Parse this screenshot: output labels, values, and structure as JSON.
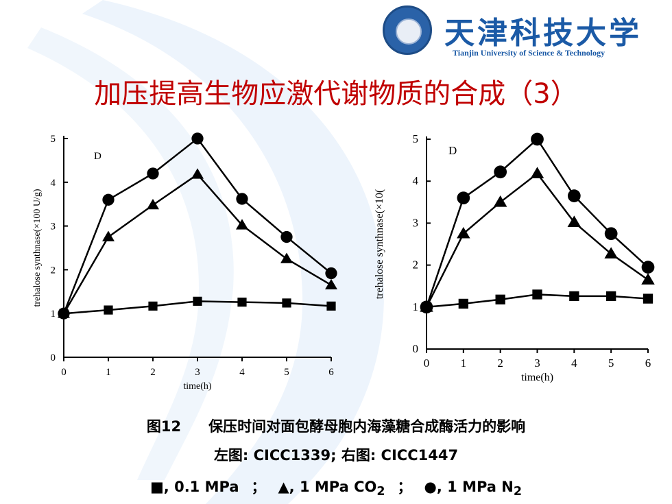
{
  "header": {
    "logo_cn": "天津科技大学",
    "logo_en": "Tianjin University of Science & Technology"
  },
  "title": "加压提高生物应激代谢物质的合成（3）",
  "colors": {
    "title": "#c00000",
    "logo": "#1b5aa6",
    "marks": "#000000"
  },
  "chart_data": [
    {
      "type": "line",
      "panel_label": "D",
      "xlabel": "time(h)",
      "ylabel": "trehalose synthnase(×100 U/g)",
      "x": [
        0,
        1,
        2,
        3,
        4,
        5,
        6
      ],
      "xlim": [
        0,
        6
      ],
      "ylim": [
        0,
        5
      ],
      "yticks": [
        0,
        1,
        2,
        3,
        4,
        5
      ],
      "series": [
        {
          "marker": "circle",
          "values": [
            1.0,
            3.6,
            4.2,
            5.0,
            3.62,
            2.75,
            1.92
          ]
        },
        {
          "marker": "triangle",
          "values": [
            1.0,
            2.75,
            3.48,
            4.18,
            3.02,
            2.25,
            1.65
          ]
        },
        {
          "marker": "square",
          "values": [
            1.0,
            1.08,
            1.17,
            1.28,
            1.26,
            1.24,
            1.17
          ]
        }
      ]
    },
    {
      "type": "line",
      "panel_label": "D",
      "xlabel": "time(h)",
      "ylabel": "trehalose synthnase(×10(",
      "x": [
        0,
        1,
        2,
        3,
        4,
        5,
        6
      ],
      "xlim": [
        0,
        6
      ],
      "ylim": [
        0,
        5
      ],
      "yticks": [
        0,
        1,
        2,
        3,
        4,
        5
      ],
      "series": [
        {
          "marker": "circle",
          "values": [
            1.0,
            3.6,
            4.22,
            5.0,
            3.65,
            2.75,
            1.95
          ]
        },
        {
          "marker": "triangle",
          "values": [
            1.0,
            2.75,
            3.5,
            4.18,
            3.02,
            2.27,
            1.65
          ]
        },
        {
          "marker": "square",
          "values": [
            1.0,
            1.08,
            1.18,
            1.3,
            1.26,
            1.26,
            1.2
          ]
        }
      ]
    }
  ],
  "caption": {
    "line1_num": "图12",
    "line1_text": "保压时间对面包酵母胞内海藻糖合成酶活力的影响",
    "line2": "左图: CICC1339; 右图: CICC1447",
    "legend": [
      {
        "symbol": "■",
        "text": ", 0.1 MPa",
        "sub_base": "",
        "sub": ""
      },
      {
        "symbol": "▲",
        "text": ", 1 MPa CO",
        "sub": "2"
      },
      {
        "symbol": "●",
        "text": ", 1 MPa N",
        "sub": "2"
      }
    ],
    "separator": "；"
  }
}
